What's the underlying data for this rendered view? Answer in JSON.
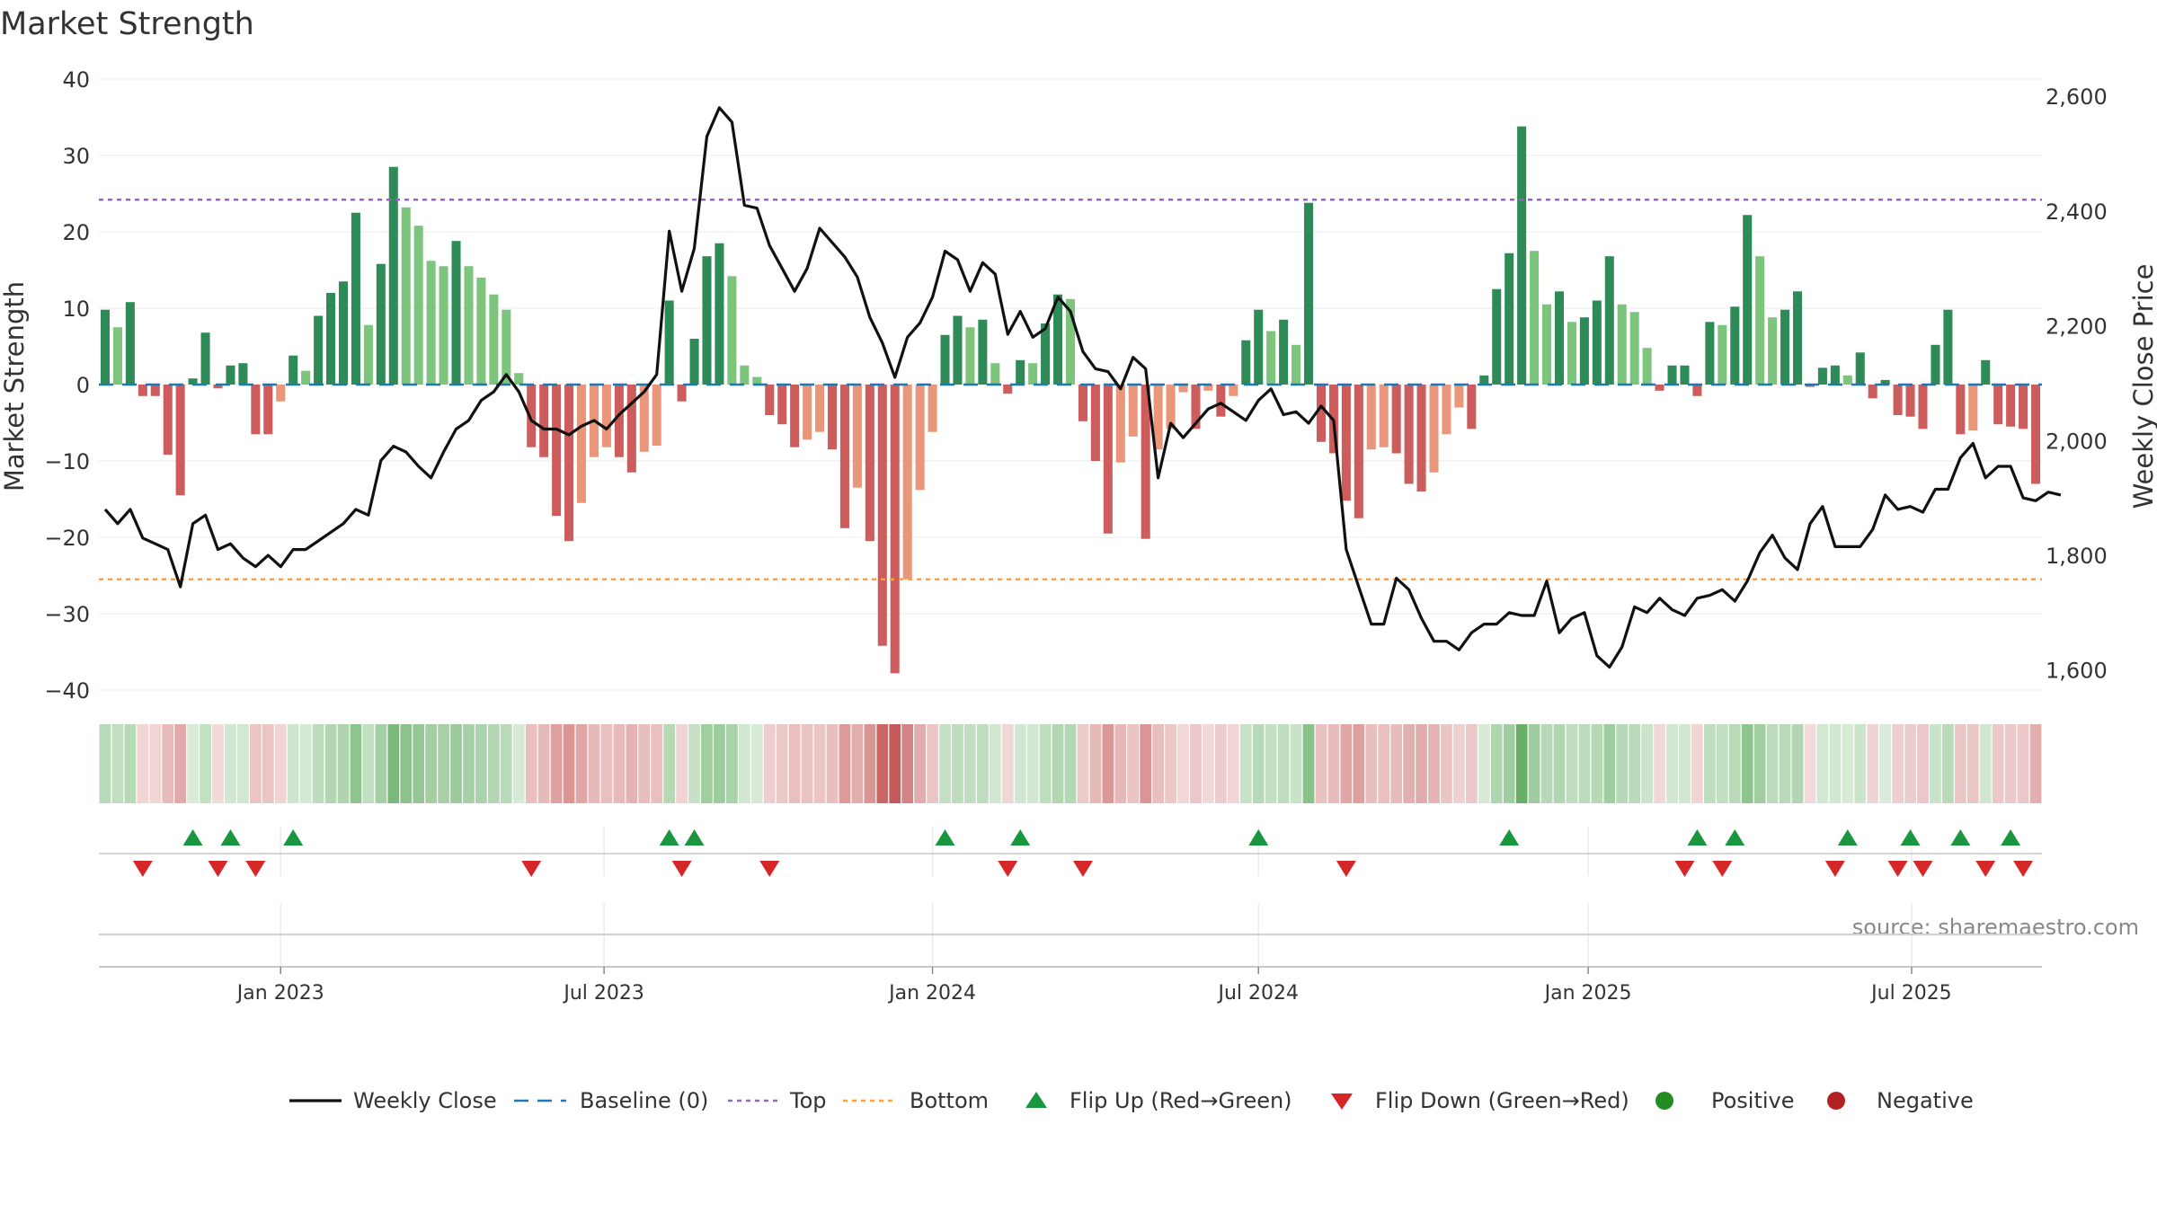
{
  "chart_data": {
    "type": "bar",
    "title": "Market Strength",
    "ylabel_left": "Market Strength",
    "ylabel_right": "Weekly Close Price",
    "source": "source: sharemaestro.com",
    "left_ylim": [
      -40,
      40
    ],
    "left_ticks": [
      40,
      30,
      20,
      10,
      0,
      -10,
      -20,
      -30,
      -40
    ],
    "left_tick_labels": [
      "40",
      "30",
      "20",
      "10",
      "0",
      "−10",
      "−20",
      "−30",
      "−40"
    ],
    "right_ylim": [
      1565,
      2630
    ],
    "right_ticks": [
      2600,
      2400,
      2200,
      2000,
      1800,
      1600
    ],
    "right_tick_labels": [
      "2,600",
      "2,400",
      "2,200",
      "2,000",
      "1,800",
      "1,600"
    ],
    "x_dates": [
      "Jan 2023",
      "Jul 2023",
      "Jan 2024",
      "Jul 2024",
      "Jan 2025",
      "Jul 2025"
    ],
    "x_date_index": [
      14.0,
      39.8,
      66.0,
      92.0,
      118.3,
      144.1
    ],
    "top_level": 24.2,
    "bottom_level": -25.5,
    "baseline": 0,
    "strength": [
      9.8,
      7.5,
      10.8,
      -1.5,
      -1.5,
      -9.2,
      -14.5,
      0.8,
      6.8,
      -0.5,
      2.5,
      2.8,
      -6.5,
      -6.5,
      -2.2,
      3.8,
      1.8,
      9.0,
      12.0,
      13.5,
      22.5,
      7.8,
      15.8,
      28.5,
      23.2,
      20.8,
      16.2,
      15.5,
      18.8,
      15.5,
      14.0,
      11.8,
      9.8,
      1.5,
      -8.2,
      -9.5,
      -17.2,
      -20.5,
      -15.5,
      -9.5,
      -8.2,
      -9.5,
      -11.5,
      -8.8,
      -8.0,
      11.0,
      -2.2,
      6.0,
      16.8,
      18.5,
      14.2,
      2.5,
      1.0,
      -4.0,
      -5.2,
      -8.2,
      -7.2,
      -6.2,
      -8.5,
      -18.8,
      -13.5,
      -20.5,
      -34.2,
      -37.8,
      -25.5,
      -13.8,
      -6.2,
      6.5,
      9.0,
      7.5,
      8.5,
      2.8,
      -1.2,
      3.2,
      2.8,
      8.0,
      11.8,
      11.2,
      -4.8,
      -10.0,
      -19.5,
      -10.2,
      -6.8,
      -20.2,
      -8.5,
      -5.8,
      -1.0,
      -5.8,
      -0.8,
      -4.2,
      -1.5,
      5.8,
      9.8,
      7.0,
      8.5,
      5.2,
      23.8,
      -7.5,
      -9.0,
      -15.2,
      -17.5,
      -8.5,
      -8.2,
      -9.0,
      -13.0,
      -14.0,
      -11.5,
      -6.5,
      -3.0,
      -5.8,
      1.2,
      12.5,
      17.2,
      33.8,
      17.5,
      10.5,
      12.2,
      8.2,
      8.8,
      11.0,
      16.8,
      10.5,
      9.5,
      4.8,
      -0.8,
      2.5,
      2.5,
      -1.5,
      8.2,
      7.8,
      10.2,
      22.2,
      16.8,
      8.8,
      9.8,
      12.2,
      -0.3,
      2.2,
      2.5,
      1.2,
      4.2,
      -1.8,
      0.6,
      -4.0,
      -4.2,
      -5.8,
      5.2,
      9.8,
      -6.5,
      -6.0,
      3.2,
      -5.2,
      -5.5,
      -5.8,
      -13.0
    ],
    "weekly_close": [
      1880,
      1855,
      1880,
      1830,
      1820,
      1810,
      1745,
      1855,
      1870,
      1810,
      1820,
      1795,
      1780,
      1800,
      1780,
      1810,
      1810,
      1825,
      1840,
      1855,
      1880,
      1870,
      1965,
      1990,
      1980,
      1955,
      1935,
      1980,
      2020,
      2035,
      2070,
      2085,
      2115,
      2085,
      2035,
      2020,
      2020,
      2010,
      2025,
      2035,
      2020,
      2045,
      2065,
      2085,
      2115,
      2365,
      2260,
      2335,
      2530,
      2580,
      2555,
      2410,
      2405,
      2340,
      2300,
      2260,
      2300,
      2370,
      2345,
      2320,
      2285,
      2215,
      2170,
      2110,
      2180,
      2205,
      2250,
      2330,
      2315,
      2260,
      2310,
      2290,
      2185,
      2225,
      2180,
      2195,
      2250,
      2225,
      2155,
      2125,
      2120,
      2090,
      2145,
      2125,
      1935,
      2030,
      2005,
      2030,
      2055,
      2065,
      2050,
      2035,
      2070,
      2090,
      2045,
      2050,
      2030,
      2060,
      2035,
      1810,
      1745,
      1680,
      1680,
      1760,
      1740,
      1690,
      1650,
      1650,
      1635,
      1665,
      1680,
      1680,
      1700,
      1695,
      1695,
      1755,
      1665,
      1690,
      1700,
      1625,
      1605,
      1640,
      1710,
      1700,
      1725,
      1705,
      1695,
      1725,
      1730,
      1740,
      1720,
      1755,
      1805,
      1835,
      1795,
      1775,
      1855,
      1885,
      1815,
      1815,
      1815,
      1845,
      1905,
      1880,
      1885,
      1875,
      1915,
      1915,
      1970,
      1995,
      1935,
      1955,
      1955,
      1900,
      1895,
      1910,
      1905
    ],
    "flip_up_index": [
      7,
      10,
      15,
      45,
      47,
      67,
      73,
      92,
      112,
      127,
      130,
      139,
      144,
      148,
      152
    ],
    "flip_down_index": [
      3,
      9,
      12,
      34,
      46,
      53,
      72,
      78,
      99,
      126,
      129,
      138,
      143,
      145,
      150,
      153
    ],
    "legend": [
      "Weekly Close",
      "Baseline (0)",
      "Top",
      "Bottom",
      "Flip Up (Red→Green)",
      "Flip Down (Green→Red)",
      "Positive",
      "Negative"
    ],
    "colors": {
      "strong_green": "#2e8b57",
      "light_green": "#7dc47d",
      "strong_red": "#cd5c5c",
      "light_red": "#e9967a",
      "price_line": "#111111",
      "baseline": "#1f77b4",
      "top": "#9467bd",
      "bottom": "#ff9f40",
      "flip_up": "#1a9641",
      "flip_down": "#d62728",
      "positive": "#228b22",
      "negative": "#b22222"
    }
  }
}
